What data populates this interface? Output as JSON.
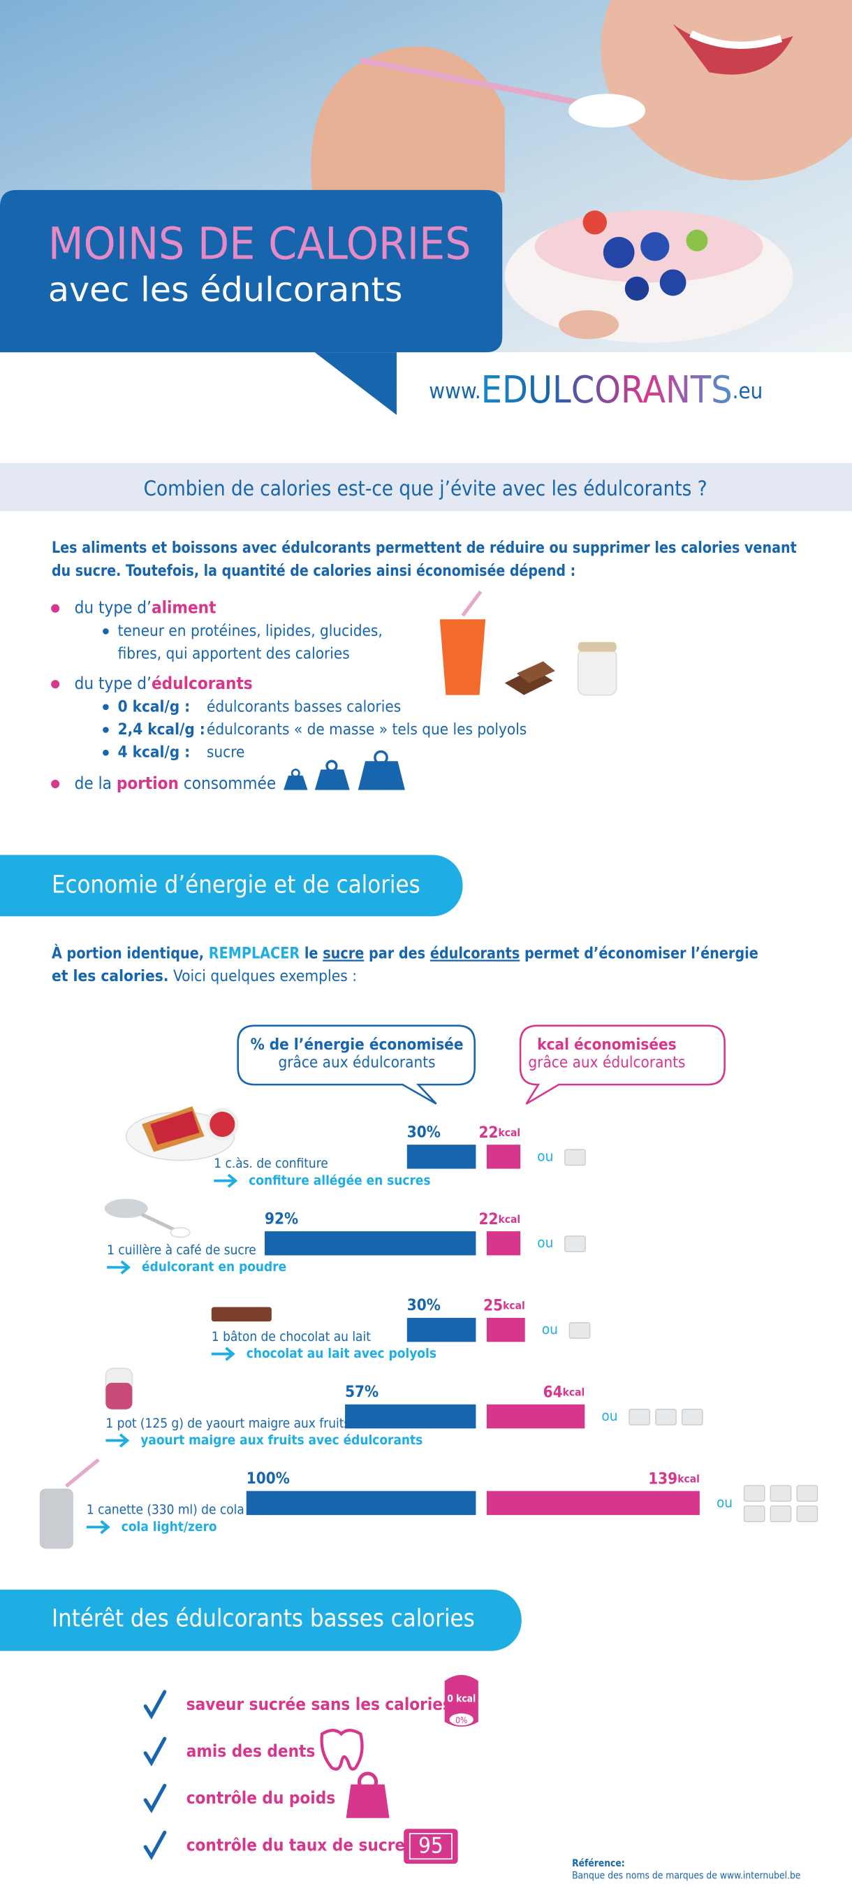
{
  "header": {
    "title": "MOINS DE CALORIES",
    "subtitle": "avec les édulcorants",
    "site": [
      "www.",
      "EDULCORANTS",
      ".eu"
    ]
  },
  "section1": {
    "heading": "Combien de calories est-ce que j’évite avec les édulcorants ?",
    "intro": [
      "Les aliments et boissons avec édulcorants permettent de réduire ou supprimer les calories venant",
      "du sucre. Toutefois, la quantité de calories ainsi économisée dépend :"
    ],
    "factors": [
      {
        "label": [
          "du type d’",
          "aliment"
        ],
        "details": [
          "teneur en protéines, lipides, glucides,",
          "fibres, qui apportent des calories"
        ]
      },
      {
        "label": [
          "du type d’",
          "édulcorants"
        ],
        "details": [
          [
            "0 kcal/g :",
            "édulcorants basses calories"
          ],
          [
            "2,4 kcal/g :",
            "édulcorants « de masse » tels que les polyols"
          ],
          [
            "4 kcal/g :",
            "sucre"
          ]
        ]
      },
      {
        "label": [
          "de la ",
          "portion",
          " consommée"
        ]
      }
    ]
  },
  "section2": {
    "heading": "Economie d’énergie et de calories",
    "intro": [
      [
        "À portion identique, ",
        "REMPLACER",
        " le ",
        "sucre",
        " par des ",
        "édulcorants",
        " permet d’économiser l’énergie"
      ],
      [
        "et les calories.",
        " Voici quelques exemples :"
      ]
    ]
  },
  "chart_data": {
    "type": "bar",
    "foods": [
      "1 c.às. de confiture",
      "1 cuillère à café de sucre",
      "1 bâton de chocolat au lait",
      "1 pot (125 g) de yaourt maigre aux fruits",
      "1 canette (330 ml) de cola"
    ],
    "replacements": [
      "confiture allégée en sucres",
      "édulcorant en poudre",
      "chocolat au lait avec polyols",
      "yaourt maigre aux fruits avec édulcorants",
      "cola light/zero"
    ],
    "series": [
      {
        "name": "% de l’énergie économisée",
        "note": "grâce aux édulcorants",
        "color": "#1665ad",
        "values": [
          30,
          92,
          30,
          57,
          100
        ],
        "value_labels": [
          "30%",
          "92%",
          "30%",
          "57%",
          "100%"
        ]
      },
      {
        "name": "kcal économisées",
        "note": "grâce aux édulcorants",
        "color": "#d6378d",
        "values": [
          22,
          22,
          25,
          64,
          139
        ]
      }
    ],
    "kcal_unit": "kcal",
    "or_label": "ou",
    "sugar_cubes": [
      1,
      1,
      1,
      3,
      6
    ]
  },
  "section3": {
    "heading": "Intérêt des édulcorants basses calories",
    "items": [
      "saveur sucrée sans les calories",
      "amis des dents",
      "contrôle du poids",
      "contrôle du taux de sucre"
    ],
    "icons": [
      "0 kcal",
      "0%",
      "95"
    ]
  },
  "reference": [
    "Référence:",
    "Banque des noms de marques de www.internubel.be"
  ]
}
